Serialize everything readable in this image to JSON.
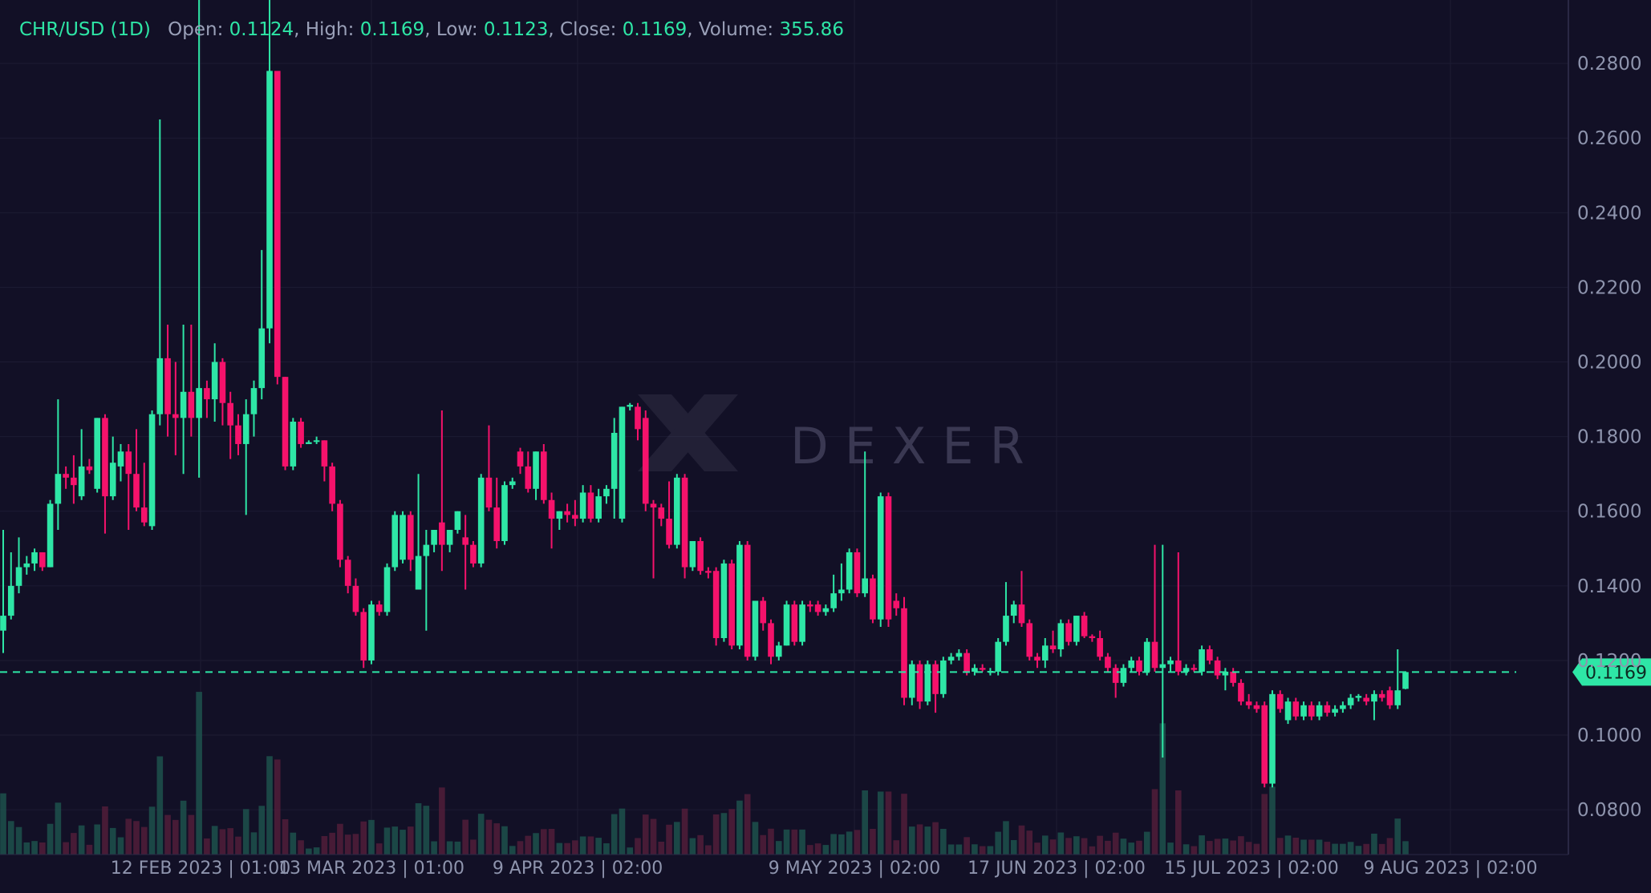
{
  "header": {
    "symbol": "CHR/USD (1D)",
    "open_label": "Open:",
    "open": "0.1124",
    "high_label": "High:",
    "high": "0.1169",
    "low_label": "Low:",
    "low": "0.1123",
    "close_label": "Close:",
    "close": "0.1169",
    "volume_label": "Volume:",
    "volume": "355.86"
  },
  "watermark": "DEXER",
  "colors": {
    "background": "#121026",
    "up": "#2ee6a6",
    "down": "#f5126b",
    "grid": "#1d1b33",
    "axis_text": "#8e94ad"
  },
  "chart_data": {
    "type": "candlestick",
    "xlabels": [
      "12 FEB 2023 | 01:00",
      "13 MAR 2023 | 01:00",
      "9 APR 2023 | 02:00",
      "9 MAY 2023 | 02:00",
      "17 JUN 2023 | 02:00",
      "15 JUL 2023 | 02:00",
      "9 AUG 2023 | 02:00"
    ],
    "yticks": [
      "0.0800",
      "0.1000",
      "0.1200",
      "0.1400",
      "0.1600",
      "0.1800",
      "0.2000",
      "0.2200",
      "0.2400",
      "0.2600",
      "0.2800"
    ],
    "ylim": [
      0.068,
      0.297
    ],
    "last_price": "0.1169",
    "grid": true,
    "candles": [
      {
        "o": 0.128,
        "h": 0.155,
        "l": 0.122,
        "c": 0.132
      },
      {
        "o": 0.132,
        "h": 0.149,
        "l": 0.131,
        "c": 0.14
      },
      {
        "o": 0.14,
        "h": 0.153,
        "l": 0.138,
        "c": 0.145
      },
      {
        "o": 0.145,
        "h": 0.148,
        "l": 0.143,
        "c": 0.146
      },
      {
        "o": 0.146,
        "h": 0.15,
        "l": 0.144,
        "c": 0.149
      },
      {
        "o": 0.149,
        "h": 0.149,
        "l": 0.144,
        "c": 0.145
      },
      {
        "o": 0.145,
        "h": 0.163,
        "l": 0.145,
        "c": 0.162
      },
      {
        "o": 0.162,
        "h": 0.19,
        "l": 0.155,
        "c": 0.17
      },
      {
        "o": 0.17,
        "h": 0.172,
        "l": 0.166,
        "c": 0.169
      },
      {
        "o": 0.169,
        "h": 0.175,
        "l": 0.162,
        "c": 0.167
      },
      {
        "o": 0.164,
        "h": 0.182,
        "l": 0.163,
        "c": 0.172
      },
      {
        "o": 0.172,
        "h": 0.174,
        "l": 0.17,
        "c": 0.171
      },
      {
        "o": 0.166,
        "h": 0.185,
        "l": 0.165,
        "c": 0.185
      },
      {
        "o": 0.185,
        "h": 0.186,
        "l": 0.154,
        "c": 0.164
      },
      {
        "o": 0.164,
        "h": 0.18,
        "l": 0.163,
        "c": 0.173
      },
      {
        "o": 0.172,
        "h": 0.178,
        "l": 0.168,
        "c": 0.176
      },
      {
        "o": 0.176,
        "h": 0.178,
        "l": 0.155,
        "c": 0.17
      },
      {
        "o": 0.17,
        "h": 0.182,
        "l": 0.16,
        "c": 0.161
      },
      {
        "o": 0.161,
        "h": 0.173,
        "l": 0.156,
        "c": 0.157
      },
      {
        "o": 0.156,
        "h": 0.187,
        "l": 0.155,
        "c": 0.186
      },
      {
        "o": 0.186,
        "h": 0.265,
        "l": 0.183,
        "c": 0.201
      },
      {
        "o": 0.201,
        "h": 0.21,
        "l": 0.18,
        "c": 0.186
      },
      {
        "o": 0.186,
        "h": 0.2,
        "l": 0.175,
        "c": 0.185
      },
      {
        "o": 0.185,
        "h": 0.21,
        "l": 0.17,
        "c": 0.192
      },
      {
        "o": 0.192,
        "h": 0.21,
        "l": 0.18,
        "c": 0.185
      },
      {
        "o": 0.185,
        "h": 0.297,
        "l": 0.169,
        "c": 0.193
      },
      {
        "o": 0.193,
        "h": 0.195,
        "l": 0.185,
        "c": 0.19
      },
      {
        "o": 0.19,
        "h": 0.205,
        "l": 0.184,
        "c": 0.2
      },
      {
        "o": 0.2,
        "h": 0.201,
        "l": 0.183,
        "c": 0.189
      },
      {
        "o": 0.189,
        "h": 0.192,
        "l": 0.174,
        "c": 0.183
      },
      {
        "o": 0.183,
        "h": 0.186,
        "l": 0.175,
        "c": 0.178
      },
      {
        "o": 0.178,
        "h": 0.19,
        "l": 0.159,
        "c": 0.186
      },
      {
        "o": 0.186,
        "h": 0.195,
        "l": 0.18,
        "c": 0.193
      },
      {
        "o": 0.193,
        "h": 0.23,
        "l": 0.19,
        "c": 0.209
      },
      {
        "o": 0.209,
        "h": 0.297,
        "l": 0.205,
        "c": 0.278
      },
      {
        "o": 0.278,
        "h": 0.278,
        "l": 0.194,
        "c": 0.196
      },
      {
        "o": 0.196,
        "h": 0.196,
        "l": 0.171,
        "c": 0.172
      },
      {
        "o": 0.172,
        "h": 0.185,
        "l": 0.171,
        "c": 0.184
      },
      {
        "o": 0.184,
        "h": 0.185,
        "l": 0.177,
        "c": 0.178
      },
      {
        "o": 0.178,
        "h": 0.179,
        "l": 0.178,
        "c": 0.1785
      },
      {
        "o": 0.179,
        "h": 0.18,
        "l": 0.178,
        "c": 0.179
      },
      {
        "o": 0.179,
        "h": 0.179,
        "l": 0.168,
        "c": 0.172
      },
      {
        "o": 0.172,
        "h": 0.173,
        "l": 0.16,
        "c": 0.162
      },
      {
        "o": 0.162,
        "h": 0.163,
        "l": 0.145,
        "c": 0.147
      },
      {
        "o": 0.147,
        "h": 0.148,
        "l": 0.138,
        "c": 0.14
      },
      {
        "o": 0.14,
        "h": 0.142,
        "l": 0.132,
        "c": 0.133
      },
      {
        "o": 0.133,
        "h": 0.134,
        "l": 0.118,
        "c": 0.12
      },
      {
        "o": 0.12,
        "h": 0.136,
        "l": 0.119,
        "c": 0.135
      },
      {
        "o": 0.135,
        "h": 0.136,
        "l": 0.132,
        "c": 0.133
      },
      {
        "o": 0.133,
        "h": 0.146,
        "l": 0.132,
        "c": 0.145
      },
      {
        "o": 0.145,
        "h": 0.16,
        "l": 0.144,
        "c": 0.159
      },
      {
        "o": 0.147,
        "h": 0.16,
        "l": 0.146,
        "c": 0.159
      },
      {
        "o": 0.159,
        "h": 0.16,
        "l": 0.144,
        "c": 0.147
      },
      {
        "o": 0.139,
        "h": 0.17,
        "l": 0.139,
        "c": 0.148
      },
      {
        "o": 0.148,
        "h": 0.155,
        "l": 0.128,
        "c": 0.151
      },
      {
        "o": 0.151,
        "h": 0.155,
        "l": 0.149,
        "c": 0.155
      },
      {
        "o": 0.157,
        "h": 0.187,
        "l": 0.144,
        "c": 0.151
      },
      {
        "o": 0.151,
        "h": 0.155,
        "l": 0.149,
        "c": 0.155
      },
      {
        "o": 0.155,
        "h": 0.16,
        "l": 0.154,
        "c": 0.16
      },
      {
        "o": 0.153,
        "h": 0.159,
        "l": 0.139,
        "c": 0.151
      },
      {
        "o": 0.151,
        "h": 0.152,
        "l": 0.145,
        "c": 0.146
      },
      {
        "o": 0.146,
        "h": 0.17,
        "l": 0.145,
        "c": 0.169
      },
      {
        "o": 0.169,
        "h": 0.183,
        "l": 0.16,
        "c": 0.161
      },
      {
        "o": 0.161,
        "h": 0.169,
        "l": 0.15,
        "c": 0.152
      },
      {
        "o": 0.152,
        "h": 0.168,
        "l": 0.151,
        "c": 0.167
      },
      {
        "o": 0.167,
        "h": 0.169,
        "l": 0.166,
        "c": 0.168
      },
      {
        "o": 0.176,
        "h": 0.177,
        "l": 0.17,
        "c": 0.172
      },
      {
        "o": 0.172,
        "h": 0.176,
        "l": 0.165,
        "c": 0.166
      },
      {
        "o": 0.166,
        "h": 0.176,
        "l": 0.163,
        "c": 0.176
      },
      {
        "o": 0.176,
        "h": 0.178,
        "l": 0.162,
        "c": 0.163
      },
      {
        "o": 0.163,
        "h": 0.165,
        "l": 0.15,
        "c": 0.158
      },
      {
        "o": 0.158,
        "h": 0.16,
        "l": 0.155,
        "c": 0.16
      },
      {
        "o": 0.16,
        "h": 0.162,
        "l": 0.157,
        "c": 0.159
      },
      {
        "o": 0.159,
        "h": 0.163,
        "l": 0.156,
        "c": 0.158
      },
      {
        "o": 0.158,
        "h": 0.167,
        "l": 0.157,
        "c": 0.165
      },
      {
        "o": 0.165,
        "h": 0.167,
        "l": 0.157,
        "c": 0.158
      },
      {
        "o": 0.158,
        "h": 0.166,
        "l": 0.157,
        "c": 0.164
      },
      {
        "o": 0.164,
        "h": 0.167,
        "l": 0.162,
        "c": 0.166
      },
      {
        "o": 0.166,
        "h": 0.185,
        "l": 0.158,
        "c": 0.181
      },
      {
        "o": 0.158,
        "h": 0.188,
        "l": 0.157,
        "c": 0.188
      },
      {
        "o": 0.188,
        "h": 0.189,
        "l": 0.187,
        "c": 0.1885
      },
      {
        "o": 0.188,
        "h": 0.189,
        "l": 0.179,
        "c": 0.182
      },
      {
        "o": 0.185,
        "h": 0.187,
        "l": 0.16,
        "c": 0.162
      },
      {
        "o": 0.162,
        "h": 0.163,
        "l": 0.142,
        "c": 0.161
      },
      {
        "o": 0.161,
        "h": 0.162,
        "l": 0.156,
        "c": 0.158
      },
      {
        "o": 0.158,
        "h": 0.168,
        "l": 0.15,
        "c": 0.151
      },
      {
        "o": 0.151,
        "h": 0.17,
        "l": 0.15,
        "c": 0.169
      },
      {
        "o": 0.169,
        "h": 0.17,
        "l": 0.142,
        "c": 0.145
      },
      {
        "o": 0.145,
        "h": 0.152,
        "l": 0.144,
        "c": 0.152
      },
      {
        "o": 0.152,
        "h": 0.153,
        "l": 0.143,
        "c": 0.144
      },
      {
        "o": 0.144,
        "h": 0.145,
        "l": 0.142,
        "c": 0.1435
      },
      {
        "o": 0.144,
        "h": 0.145,
        "l": 0.124,
        "c": 0.126
      },
      {
        "o": 0.126,
        "h": 0.147,
        "l": 0.125,
        "c": 0.146
      },
      {
        "o": 0.146,
        "h": 0.147,
        "l": 0.123,
        "c": 0.124
      },
      {
        "o": 0.124,
        "h": 0.152,
        "l": 0.123,
        "c": 0.151
      },
      {
        "o": 0.151,
        "h": 0.152,
        "l": 0.12,
        "c": 0.121
      },
      {
        "o": 0.121,
        "h": 0.136,
        "l": 0.12,
        "c": 0.136
      },
      {
        "o": 0.136,
        "h": 0.137,
        "l": 0.128,
        "c": 0.13
      },
      {
        "o": 0.13,
        "h": 0.131,
        "l": 0.119,
        "c": 0.121
      },
      {
        "o": 0.121,
        "h": 0.125,
        "l": 0.12,
        "c": 0.124
      },
      {
        "o": 0.124,
        "h": 0.136,
        "l": 0.124,
        "c": 0.135
      },
      {
        "o": 0.135,
        "h": 0.136,
        "l": 0.124,
        "c": 0.125
      },
      {
        "o": 0.125,
        "h": 0.136,
        "l": 0.124,
        "c": 0.135
      },
      {
        "o": 0.135,
        "h": 0.136,
        "l": 0.133,
        "c": 0.1345
      },
      {
        "o": 0.135,
        "h": 0.136,
        "l": 0.132,
        "c": 0.133
      },
      {
        "o": 0.133,
        "h": 0.135,
        "l": 0.132,
        "c": 0.134
      },
      {
        "o": 0.134,
        "h": 0.143,
        "l": 0.133,
        "c": 0.138
      },
      {
        "o": 0.138,
        "h": 0.146,
        "l": 0.136,
        "c": 0.139
      },
      {
        "o": 0.139,
        "h": 0.15,
        "l": 0.138,
        "c": 0.149
      },
      {
        "o": 0.149,
        "h": 0.15,
        "l": 0.137,
        "c": 0.138
      },
      {
        "o": 0.138,
        "h": 0.176,
        "l": 0.137,
        "c": 0.142
      },
      {
        "o": 0.142,
        "h": 0.143,
        "l": 0.13,
        "c": 0.131
      },
      {
        "o": 0.131,
        "h": 0.165,
        "l": 0.129,
        "c": 0.164
      },
      {
        "o": 0.164,
        "h": 0.165,
        "l": 0.129,
        "c": 0.131
      },
      {
        "o": 0.136,
        "h": 0.138,
        "l": 0.132,
        "c": 0.134
      },
      {
        "o": 0.134,
        "h": 0.137,
        "l": 0.108,
        "c": 0.11
      },
      {
        "o": 0.11,
        "h": 0.12,
        "l": 0.108,
        "c": 0.119
      },
      {
        "o": 0.119,
        "h": 0.12,
        "l": 0.107,
        "c": 0.109
      },
      {
        "o": 0.109,
        "h": 0.12,
        "l": 0.108,
        "c": 0.119
      },
      {
        "o": 0.119,
        "h": 0.12,
        "l": 0.106,
        "c": 0.111
      },
      {
        "o": 0.111,
        "h": 0.121,
        "l": 0.11,
        "c": 0.12
      },
      {
        "o": 0.12,
        "h": 0.122,
        "l": 0.119,
        "c": 0.121
      },
      {
        "o": 0.121,
        "h": 0.123,
        "l": 0.12,
        "c": 0.122
      },
      {
        "o": 0.122,
        "h": 0.123,
        "l": 0.116,
        "c": 0.117
      },
      {
        "o": 0.117,
        "h": 0.119,
        "l": 0.116,
        "c": 0.118
      },
      {
        "o": 0.118,
        "h": 0.119,
        "l": 0.117,
        "c": 0.1175
      },
      {
        "o": 0.117,
        "h": 0.118,
        "l": 0.116,
        "c": 0.1172
      },
      {
        "o": 0.117,
        "h": 0.126,
        "l": 0.116,
        "c": 0.125
      },
      {
        "o": 0.125,
        "h": 0.141,
        "l": 0.124,
        "c": 0.132
      },
      {
        "o": 0.132,
        "h": 0.136,
        "l": 0.13,
        "c": 0.135
      },
      {
        "o": 0.135,
        "h": 0.144,
        "l": 0.129,
        "c": 0.13
      },
      {
        "o": 0.13,
        "h": 0.131,
        "l": 0.12,
        "c": 0.121
      },
      {
        "o": 0.121,
        "h": 0.122,
        "l": 0.118,
        "c": 0.12
      },
      {
        "o": 0.12,
        "h": 0.126,
        "l": 0.118,
        "c": 0.124
      },
      {
        "o": 0.124,
        "h": 0.128,
        "l": 0.122,
        "c": 0.123
      },
      {
        "o": 0.123,
        "h": 0.131,
        "l": 0.121,
        "c": 0.13
      },
      {
        "o": 0.13,
        "h": 0.131,
        "l": 0.124,
        "c": 0.125
      },
      {
        "o": 0.125,
        "h": 0.132,
        "l": 0.124,
        "c": 0.132
      },
      {
        "o": 0.132,
        "h": 0.133,
        "l": 0.126,
        "c": 0.1265
      },
      {
        "o": 0.1265,
        "h": 0.127,
        "l": 0.125,
        "c": 0.126
      },
      {
        "o": 0.126,
        "h": 0.128,
        "l": 0.12,
        "c": 0.121
      },
      {
        "o": 0.121,
        "h": 0.122,
        "l": 0.117,
        "c": 0.118
      },
      {
        "o": 0.118,
        "h": 0.119,
        "l": 0.11,
        "c": 0.114
      },
      {
        "o": 0.114,
        "h": 0.119,
        "l": 0.113,
        "c": 0.118
      },
      {
        "o": 0.118,
        "h": 0.121,
        "l": 0.117,
        "c": 0.12
      },
      {
        "o": 0.12,
        "h": 0.121,
        "l": 0.116,
        "c": 0.117
      },
      {
        "o": 0.117,
        "h": 0.126,
        "l": 0.116,
        "c": 0.125
      },
      {
        "o": 0.125,
        "h": 0.151,
        "l": 0.117,
        "c": 0.118
      },
      {
        "o": 0.118,
        "h": 0.151,
        "l": 0.094,
        "c": 0.119
      },
      {
        "o": 0.119,
        "h": 0.121,
        "l": 0.117,
        "c": 0.12
      },
      {
        "o": 0.12,
        "h": 0.149,
        "l": 0.116,
        "c": 0.117
      },
      {
        "o": 0.117,
        "h": 0.119,
        "l": 0.116,
        "c": 0.118
      },
      {
        "o": 0.118,
        "h": 0.119,
        "l": 0.117,
        "c": 0.1175
      },
      {
        "o": 0.117,
        "h": 0.124,
        "l": 0.116,
        "c": 0.123
      },
      {
        "o": 0.123,
        "h": 0.124,
        "l": 0.119,
        "c": 0.12
      },
      {
        "o": 0.12,
        "h": 0.121,
        "l": 0.115,
        "c": 0.116
      },
      {
        "o": 0.116,
        "h": 0.118,
        "l": 0.112,
        "c": 0.117
      },
      {
        "o": 0.117,
        "h": 0.118,
        "l": 0.113,
        "c": 0.114
      },
      {
        "o": 0.114,
        "h": 0.115,
        "l": 0.108,
        "c": 0.109
      },
      {
        "o": 0.109,
        "h": 0.111,
        "l": 0.107,
        "c": 0.108
      },
      {
        "o": 0.108,
        "h": 0.109,
        "l": 0.106,
        "c": 0.107
      },
      {
        "o": 0.108,
        "h": 0.109,
        "l": 0.086,
        "c": 0.087
      },
      {
        "o": 0.087,
        "h": 0.112,
        "l": 0.086,
        "c": 0.111
      },
      {
        "o": 0.111,
        "h": 0.112,
        "l": 0.106,
        "c": 0.107
      },
      {
        "o": 0.104,
        "h": 0.11,
        "l": 0.103,
        "c": 0.109
      },
      {
        "o": 0.109,
        "h": 0.11,
        "l": 0.104,
        "c": 0.105
      },
      {
        "o": 0.105,
        "h": 0.109,
        "l": 0.104,
        "c": 0.108
      },
      {
        "o": 0.108,
        "h": 0.109,
        "l": 0.104,
        "c": 0.105
      },
      {
        "o": 0.105,
        "h": 0.109,
        "l": 0.104,
        "c": 0.108
      },
      {
        "o": 0.108,
        "h": 0.109,
        "l": 0.105,
        "c": 0.106
      },
      {
        "o": 0.106,
        "h": 0.108,
        "l": 0.105,
        "c": 0.107
      },
      {
        "o": 0.107,
        "h": 0.109,
        "l": 0.106,
        "c": 0.108
      },
      {
        "o": 0.108,
        "h": 0.111,
        "l": 0.107,
        "c": 0.11
      },
      {
        "o": 0.11,
        "h": 0.111,
        "l": 0.109,
        "c": 0.1105
      },
      {
        "o": 0.11,
        "h": 0.111,
        "l": 0.108,
        "c": 0.109
      },
      {
        "o": 0.109,
        "h": 0.112,
        "l": 0.104,
        "c": 0.111
      },
      {
        "o": 0.111,
        "h": 0.112,
        "l": 0.109,
        "c": 0.11
      },
      {
        "o": 0.112,
        "h": 0.113,
        "l": 0.107,
        "c": 0.108
      },
      {
        "o": 0.108,
        "h": 0.123,
        "l": 0.107,
        "c": 0.112
      },
      {
        "o": 0.1124,
        "h": 0.1169,
        "l": 0.1123,
        "c": 0.1169
      }
    ]
  }
}
